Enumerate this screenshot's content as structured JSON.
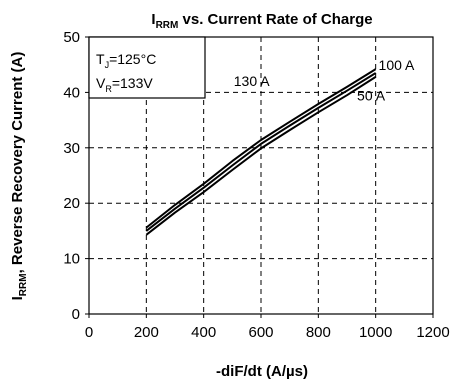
{
  "chart_data": {
    "type": "line",
    "title": {
      "main": "I",
      "sub": "RRM",
      "rest": " vs. Current Rate of Charge"
    },
    "xlabel": "-diF/dt  (A/µs)",
    "ylabel": {
      "main": "I",
      "sub": "RRM",
      "rest": ", Reverse Recovery Current (A)"
    },
    "xlim": [
      0,
      1200
    ],
    "ylim": [
      0,
      50
    ],
    "x_ticks": [
      "0",
      "200",
      "400",
      "600",
      "800",
      "1000",
      "1200"
    ],
    "y_ticks": [
      "0",
      "10",
      "20",
      "30",
      "40",
      "50"
    ],
    "grid": true,
    "grid_style": "dashed",
    "conditions": {
      "tj": {
        "main": "T",
        "sub": "J",
        "rest": "=125°C"
      },
      "vr": {
        "main": "V",
        "sub": "R",
        "rest": "=133V"
      }
    },
    "series": [
      {
        "name": "130 A",
        "x": [
          200,
          300,
          400,
          500,
          600,
          700,
          800,
          900,
          1000
        ],
        "y": [
          15.6,
          19.7,
          23.5,
          27.6,
          31.4,
          34.7,
          37.9,
          41.0,
          44.2
        ]
      },
      {
        "name": "100 A",
        "x": [
          200,
          300,
          400,
          500,
          600,
          700,
          800,
          900,
          1000
        ],
        "y": [
          15.0,
          19.0,
          22.8,
          26.8,
          30.7,
          34.0,
          37.2,
          40.3,
          43.5
        ]
      },
      {
        "name": "50 A",
        "x": [
          200,
          300,
          400,
          500,
          600,
          700,
          800,
          900,
          1000
        ],
        "y": [
          14.3,
          18.3,
          22.0,
          26.0,
          29.9,
          33.2,
          36.4,
          39.5,
          42.8
        ]
      }
    ],
    "series_labels": [
      {
        "text": "130 A",
        "x": 505,
        "y": 41.2,
        "anchor": "start"
      },
      {
        "text": "100 A",
        "x": 1010,
        "y": 44.0,
        "anchor": "start"
      },
      {
        "text": "50 A",
        "x": 935,
        "y": 38.5,
        "anchor": "start"
      }
    ]
  }
}
